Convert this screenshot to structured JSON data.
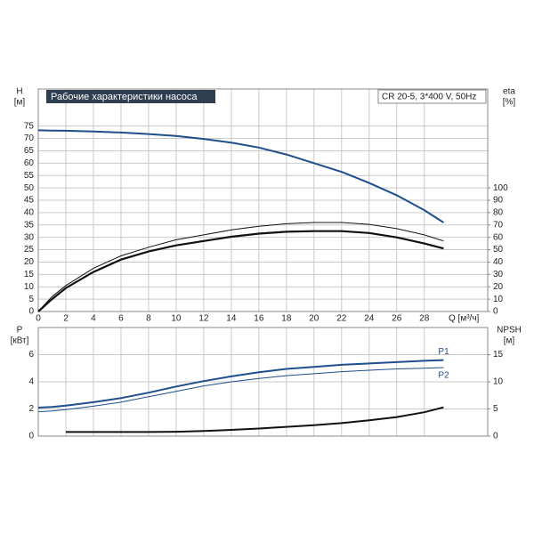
{
  "chart_data": [
    {
      "type": "line",
      "title": "Рабочие характеристики насоса",
      "subtitle": "CR 20-5, 3*400 V, 50Hz",
      "x_label": "Q [м³/ч]",
      "y_label": "H",
      "y_unit": "[м]",
      "y2_label": "eta",
      "y2_unit": "[%]",
      "x": [
        0,
        1,
        2,
        4,
        6,
        8,
        10,
        12,
        14,
        16,
        18,
        20,
        22,
        24,
        26,
        28,
        29.4
      ],
      "xlim": [
        0,
        32.6
      ],
      "xticks": [
        0,
        2,
        4,
        6,
        8,
        10,
        12,
        14,
        16,
        18,
        20,
        22,
        24,
        26,
        28
      ],
      "ylim": [
        0,
        90
      ],
      "yticks": [
        0,
        5,
        10,
        15,
        20,
        25,
        30,
        35,
        40,
        45,
        50,
        55,
        60,
        65,
        70,
        75
      ],
      "y2lim": [
        0,
        180
      ],
      "y2ticks": [
        0,
        10,
        20,
        30,
        40,
        50,
        60,
        70,
        80,
        90,
        100
      ],
      "grid": true,
      "series": [
        {
          "color": "#1f4e8c",
          "line_width": 2,
          "axis": "y",
          "values": [
            73.3,
            73.2,
            73.1,
            72.8,
            72.4,
            71.8,
            71,
            69.8,
            68.3,
            66.3,
            63.5,
            60,
            56.5,
            52,
            47,
            41,
            36
          ]
        },
        {
          "color": "#111111",
          "line_width": 1,
          "axis": "y2",
          "values": [
            0,
            12,
            21,
            35,
            45,
            52,
            58,
            62,
            66,
            69,
            71,
            72,
            72,
            70.5,
            67,
            62,
            57
          ]
        },
        {
          "color": "#111111",
          "line_width": 2.2,
          "axis": "y2",
          "values": [
            0,
            10,
            19,
            32,
            42,
            48.5,
            53.5,
            57,
            60.5,
            63,
            64.5,
            65,
            65,
            63.5,
            60,
            55,
            51
          ]
        }
      ]
    },
    {
      "type": "line",
      "y_label": "P",
      "y_unit": "[кВт]",
      "y2_label": "NPSH",
      "y2_unit": "[м]",
      "x": [
        0,
        1,
        2,
        4,
        6,
        8,
        10,
        12,
        14,
        16,
        18,
        20,
        22,
        24,
        26,
        28,
        29.4
      ],
      "xlim": [
        0,
        32.6
      ],
      "ylim": [
        0,
        8
      ],
      "yticks": [
        0,
        2,
        4,
        6
      ],
      "y2lim": [
        0,
        20
      ],
      "y2ticks": [
        0,
        5,
        10,
        15
      ],
      "grid": true,
      "series": [
        {
          "name": "P1",
          "color": "#1f4e8c",
          "line_width": 2,
          "axis": "y",
          "values": [
            2.1,
            2.15,
            2.25,
            2.5,
            2.8,
            3.2,
            3.65,
            4.05,
            4.4,
            4.7,
            4.95,
            5.1,
            5.25,
            5.35,
            5.45,
            5.55,
            5.6
          ]
        },
        {
          "name": "P2",
          "color": "#1f4e8c",
          "line_width": 1,
          "axis": "y",
          "values": [
            1.8,
            1.85,
            1.95,
            2.2,
            2.5,
            2.9,
            3.3,
            3.7,
            4.0,
            4.25,
            4.45,
            4.6,
            4.75,
            4.85,
            4.95,
            5.0,
            5.05
          ]
        },
        {
          "color": "#111111",
          "line_width": 2,
          "axis": "y2",
          "values": [
            null,
            null,
            0.75,
            0.75,
            0.75,
            0.75,
            0.8,
            0.95,
            1.15,
            1.4,
            1.7,
            2.0,
            2.4,
            2.9,
            3.5,
            4.4,
            5.3
          ]
        }
      ]
    }
  ]
}
